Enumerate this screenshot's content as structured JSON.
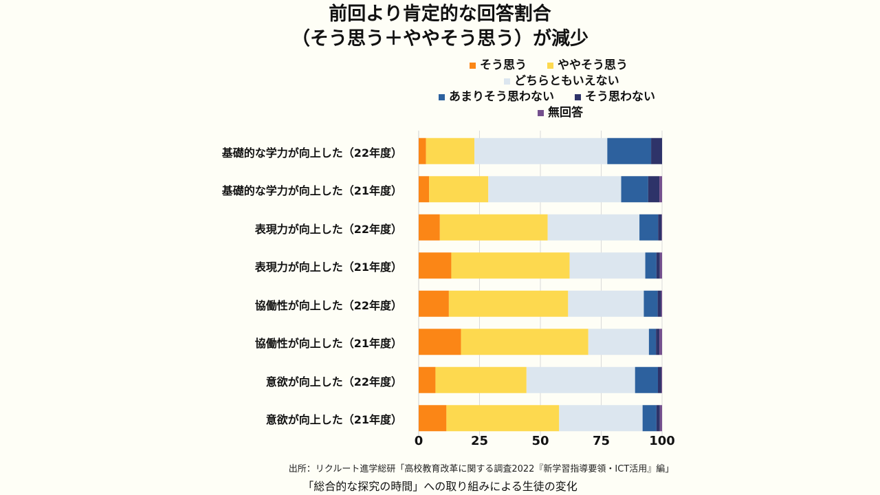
{
  "chart_data": {
    "type": "bar",
    "orientation": "horizontal",
    "stacked": true,
    "title": "前回より肯定的な回答割合",
    "subtitle": "（そう思う＋ややそう思う）が減少",
    "categories": [
      "基礎的な学力が向上した（22年度）",
      "基礎的な学力が向上した（21年度）",
      "表現力が向上した（22年度）",
      "表現力が向上した（21年度）",
      "協働性が向上した（22年度）",
      "協働性が向上した（21年度）",
      "意欲が向上した（22年度）",
      "意欲が向上した（21年度）"
    ],
    "series": [
      {
        "name": "そう思う",
        "color": "#fb8616",
        "values": [
          3.0,
          4.3,
          8.7,
          13.4,
          12.4,
          17.4,
          6.9,
          11.4
        ]
      },
      {
        "name": "ややそう思う",
        "color": "#fdd94f",
        "values": [
          19.9,
          24.3,
          44.3,
          48.6,
          49.0,
          52.3,
          37.4,
          46.3
        ]
      },
      {
        "name": "どちらともいえない",
        "color": "#dce6ef",
        "values": [
          54.6,
          54.6,
          37.7,
          31.1,
          31.1,
          24.9,
          44.6,
          34.3
        ]
      },
      {
        "name": "あまりそう思わない",
        "color": "#2d619e",
        "values": [
          18.0,
          11.1,
          7.7,
          4.6,
          5.7,
          2.9,
          9.4,
          5.7
        ]
      },
      {
        "name": "そう思わない",
        "color": "#2e3369",
        "values": [
          4.5,
          4.6,
          1.4,
          1.4,
          1.4,
          1.4,
          1.4,
          1.4
        ]
      },
      {
        "name": "無回答",
        "color": "#744f8d",
        "values": [
          0.0,
          1.1,
          0.2,
          0.9,
          0.4,
          1.1,
          0.3,
          0.9
        ]
      }
    ],
    "xlim": [
      0,
      100
    ],
    "xticks": [
      "0",
      "25",
      "50",
      "75",
      "100"
    ],
    "grid": true,
    "legend_position": "top"
  },
  "source": "出所：リクルート進学総研「高校教育改革に関する調査2022『新学習指導要領・ICT活用』編」",
  "caption": "「総合的な探究の時間」への取り組みによる生徒の変化"
}
